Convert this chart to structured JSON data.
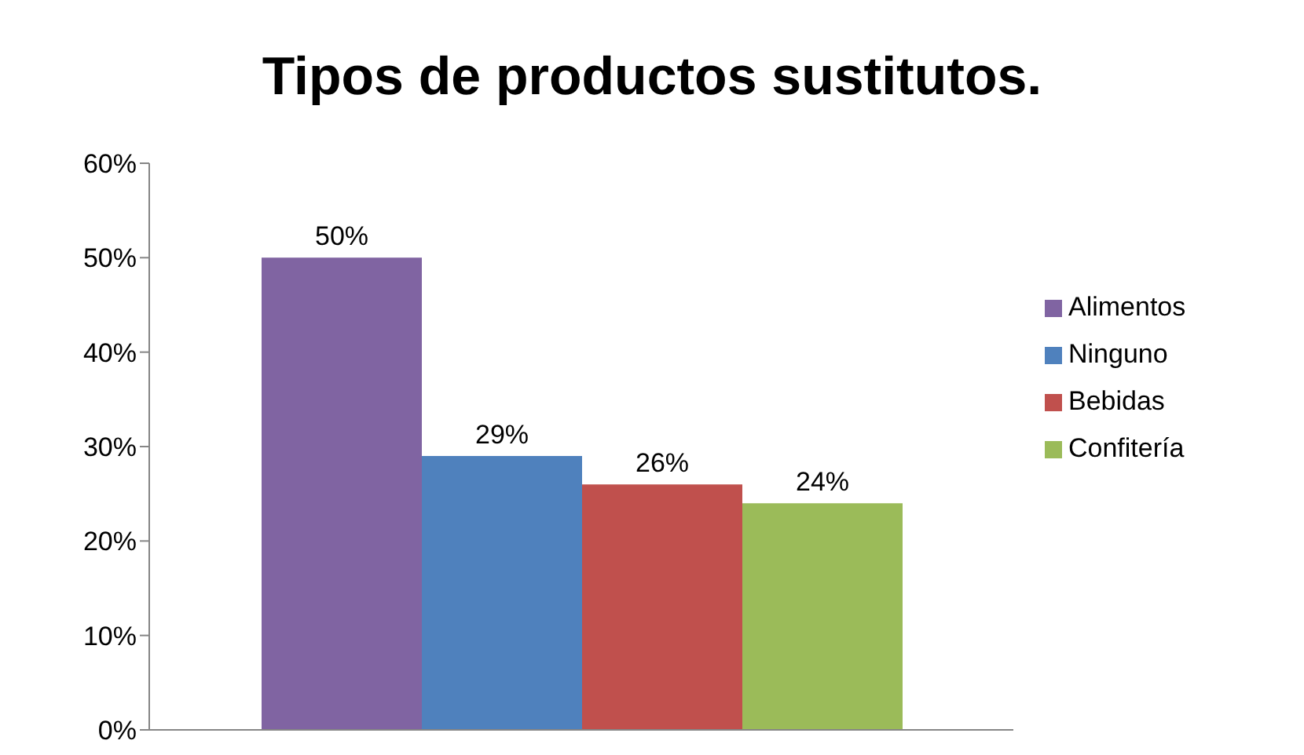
{
  "chart_data": {
    "type": "bar",
    "title": "Tipos de productos sustitutos.",
    "categories": [
      null
    ],
    "series": [
      {
        "name": "Alimentos",
        "color": "#8064a2",
        "values": [
          50
        ],
        "value_labels": [
          "50%"
        ]
      },
      {
        "name": "Ninguno",
        "color": "#4f81bd",
        "values": [
          29
        ],
        "value_labels": [
          "29%"
        ]
      },
      {
        "name": "Bebidas",
        "color": "#c0504d",
        "values": [
          26
        ],
        "value_labels": [
          "26%"
        ]
      },
      {
        "name": "Confitería",
        "color": "#9bbb59",
        "values": [
          24
        ],
        "value_labels": [
          "24%"
        ]
      }
    ],
    "ylim": [
      0,
      60
    ],
    "yticks": [
      {
        "value": 0,
        "label": "0%"
      },
      {
        "value": 10,
        "label": "10%"
      },
      {
        "value": 20,
        "label": "20%"
      },
      {
        "value": 30,
        "label": "30%"
      },
      {
        "value": 40,
        "label": "40%"
      },
      {
        "value": 50,
        "label": "50%"
      },
      {
        "value": 60,
        "label": "60%"
      }
    ],
    "grid": false,
    "legend": "right"
  }
}
